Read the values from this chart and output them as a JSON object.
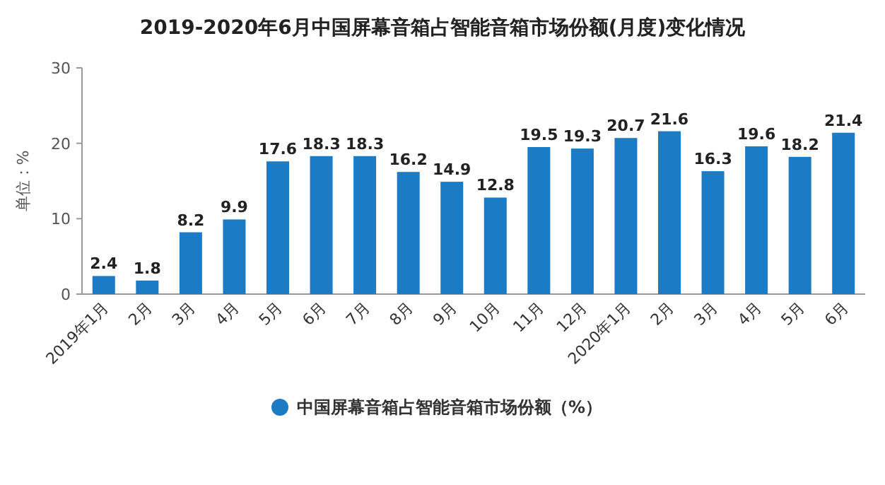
{
  "chart_data": {
    "type": "bar",
    "title": "2019-2020年6月中国屏幕音箱占智能音箱市场份额(月度)变化情况",
    "ylabel": "单位：%",
    "categories": [
      "2019年1月",
      "2月",
      "3月",
      "4月",
      "5月",
      "6月",
      "7月",
      "8月",
      "9月",
      "10月",
      "11月",
      "12月",
      "2020年1月",
      "2月",
      "3月",
      "4月",
      "5月",
      "6月"
    ],
    "series": [
      {
        "name": "中国屏幕音箱占智能音箱市场份额（%）",
        "color": "#1b7bc4",
        "values": [
          2.4,
          1.8,
          8.2,
          9.9,
          17.6,
          18.3,
          18.3,
          16.2,
          14.9,
          12.8,
          19.5,
          19.3,
          20.7,
          21.6,
          16.3,
          19.6,
          18.2,
          21.4
        ]
      }
    ],
    "ylim": [
      0,
      30
    ],
    "yticks": [
      0,
      10,
      20,
      30
    ],
    "data_labels": true,
    "legend": "bottom",
    "grid": false
  }
}
